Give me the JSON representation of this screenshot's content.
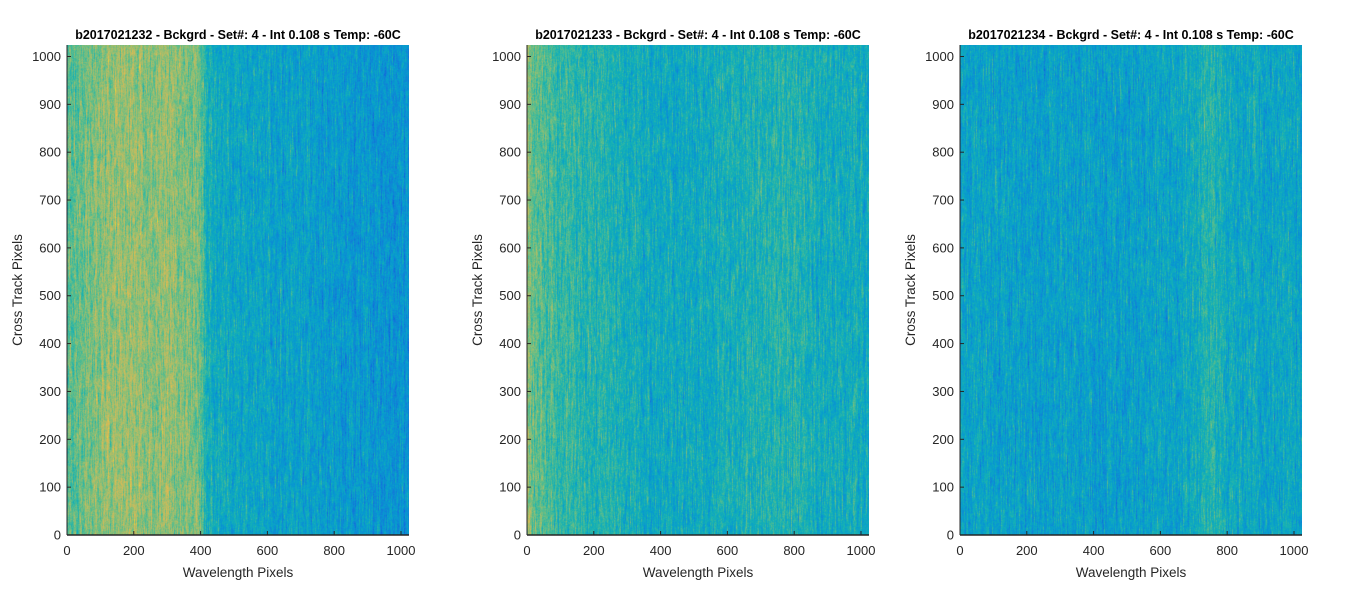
{
  "chart_data": [
    {
      "type": "heatmap",
      "title": "b2017021232 - Bckgrd - Set#: 4 - Int 0.108 s Temp: -60C",
      "xlabel": "Wavelength Pixels",
      "ylabel": "Cross Track Pixels",
      "xlim": [
        0,
        1024
      ],
      "ylim": [
        0,
        1024
      ],
      "xticks": [
        0,
        200,
        400,
        600,
        800,
        1000
      ],
      "yticks": [
        0,
        100,
        200,
        300,
        400,
        500,
        600,
        700,
        800,
        900,
        1000
      ],
      "colormap": "parula",
      "column_profile": {
        "x": [
          0,
          50,
          100,
          150,
          200,
          250,
          300,
          350,
          400,
          420,
          500,
          600,
          700,
          800,
          900,
          1000,
          1024
        ],
        "level": [
          0.62,
          0.66,
          0.7,
          0.74,
          0.72,
          0.7,
          0.72,
          0.7,
          0.66,
          0.48,
          0.44,
          0.42,
          0.4,
          0.38,
          0.36,
          0.34,
          0.34
        ]
      }
    },
    {
      "type": "heatmap",
      "title": "b2017021233 - Bckgrd - Set#: 4 - Int 0.108 s Temp: -60C",
      "xlabel": "Wavelength Pixels",
      "ylabel": "Cross Track Pixels",
      "xlim": [
        0,
        1024
      ],
      "ylim": [
        0,
        1024
      ],
      "xticks": [
        0,
        200,
        400,
        600,
        800,
        1000
      ],
      "yticks": [
        0,
        100,
        200,
        300,
        400,
        500,
        600,
        700,
        800,
        900,
        1000
      ],
      "colormap": "parula",
      "column_profile": {
        "x": [
          0,
          20,
          100,
          200,
          300,
          400,
          500,
          600,
          700,
          750,
          800,
          900,
          1000,
          1024
        ],
        "level": [
          0.72,
          0.64,
          0.54,
          0.52,
          0.48,
          0.44,
          0.46,
          0.48,
          0.5,
          0.53,
          0.5,
          0.48,
          0.46,
          0.46
        ]
      }
    },
    {
      "type": "heatmap",
      "title": "b2017021234 - Bckgrd - Set#: 4 - Int 0.108 s Temp: -60C",
      "xlabel": "Wavelength Pixels",
      "ylabel": "Cross Track Pixels",
      "xlim": [
        0,
        1024
      ],
      "ylim": [
        0,
        1024
      ],
      "xticks": [
        0,
        200,
        400,
        600,
        800,
        1000
      ],
      "yticks": [
        0,
        100,
        200,
        300,
        400,
        500,
        600,
        700,
        800,
        900,
        1000
      ],
      "colormap": "parula",
      "column_profile": {
        "x": [
          0,
          100,
          200,
          300,
          400,
          500,
          600,
          700,
          750,
          800,
          900,
          1000,
          1024
        ],
        "level": [
          0.42,
          0.41,
          0.4,
          0.41,
          0.4,
          0.41,
          0.42,
          0.46,
          0.52,
          0.46,
          0.44,
          0.43,
          0.43
        ]
      }
    }
  ]
}
